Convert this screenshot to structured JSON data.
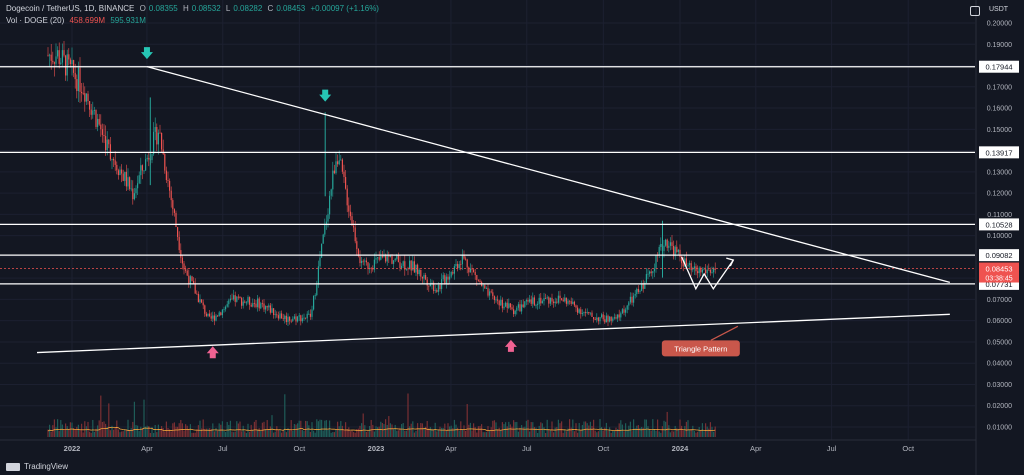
{
  "header": {
    "symbol": "Dogecoin / TetherUS, 1D, BINANCE",
    "o_label": "O",
    "o": "0.08355",
    "h_label": "H",
    "h": "0.08532",
    "l_label": "L",
    "l": "0.08282",
    "c_label": "C",
    "c": "0.08453",
    "change": "+0.00097 (+1.16%)",
    "vol_label": "Vol · DOGE (20)",
    "vol_1": "458.699M",
    "vol_2": "595.931M"
  },
  "currency": "USDT",
  "brand": "TradingView",
  "colors": {
    "background": "#131722",
    "up": "#26a69a",
    "down": "#ef5350",
    "line": "#ffffff",
    "arrow_top": "#26c6b5",
    "arrow_bottom": "#f06292",
    "vol_ma": "#f2a33a",
    "annotation_bg": "#c9574b"
  },
  "chart_data": {
    "type": "candlestick",
    "ylim": [
      0,
      0.21
    ],
    "y_ticks": [
      "0.01000",
      "0.02000",
      "0.03000",
      "0.04000",
      "0.05000",
      "0.06000",
      "0.07000",
      "0.08000",
      "0.09000",
      "0.10000",
      "0.11000",
      "0.12000",
      "0.13000",
      "0.14000",
      "0.15000",
      "0.16000",
      "0.17000",
      "0.18000",
      "0.19000",
      "0.20000"
    ],
    "x_ticks": [
      "2022",
      "Apr",
      "Jul",
      "Oct",
      "2023",
      "Apr",
      "Jul",
      "Oct",
      "2024",
      "Apr",
      "Jul",
      "Oct"
    ],
    "price_path": [
      {
        "x": "2021-12",
        "y": 0.185
      },
      {
        "x": "2022-01",
        "y": 0.17
      },
      {
        "x": "2022-02",
        "y": 0.14
      },
      {
        "x": "2022-03",
        "y": 0.12
      },
      {
        "x": "2022-04",
        "y": 0.15
      },
      {
        "x": "2022-05",
        "y": 0.085
      },
      {
        "x": "2022-06",
        "y": 0.06
      },
      {
        "x": "2022-07",
        "y": 0.07
      },
      {
        "x": "2022-08",
        "y": 0.068
      },
      {
        "x": "2022-09",
        "y": 0.061
      },
      {
        "x": "2022-10",
        "y": 0.062
      },
      {
        "x": "2022-11",
        "y": 0.14
      },
      {
        "x": "2022-12",
        "y": 0.085
      },
      {
        "x": "2023-01",
        "y": 0.09
      },
      {
        "x": "2023-02",
        "y": 0.085
      },
      {
        "x": "2023-03",
        "y": 0.075
      },
      {
        "x": "2023-04",
        "y": 0.09
      },
      {
        "x": "2023-05",
        "y": 0.072
      },
      {
        "x": "2023-06",
        "y": 0.065
      },
      {
        "x": "2023-07",
        "y": 0.07
      },
      {
        "x": "2023-08",
        "y": 0.07
      },
      {
        "x": "2023-09",
        "y": 0.062
      },
      {
        "x": "2023-10",
        "y": 0.06
      },
      {
        "x": "2023-11",
        "y": 0.075
      },
      {
        "x": "2023-12",
        "y": 0.098
      },
      {
        "x": "2024-01",
        "y": 0.083
      },
      {
        "x": "2024-02",
        "y": 0.084
      }
    ],
    "levels": [
      {
        "label": "0.17944",
        "value": 0.17944
      },
      {
        "label": "0.13917",
        "value": 0.13917
      },
      {
        "label": "0.10528",
        "value": 0.10528
      },
      {
        "label": "0.09082",
        "value": 0.09082
      },
      {
        "label": "0.07731",
        "value": 0.07731
      }
    ],
    "current_price": {
      "label": "0.08453",
      "value": 0.08453,
      "countdown": "03:38:45"
    },
    "trendlines": [
      {
        "from": {
          "x": "2022-04-01",
          "y": 0.1795
        },
        "to": {
          "x": "2024-11-20",
          "y": 0.078
        }
      },
      {
        "from": {
          "x": "2021-11-20",
          "y": 0.045
        },
        "to": {
          "x": "2024-11-20",
          "y": 0.063
        }
      }
    ],
    "annotations": [
      {
        "text": "Triangle Pattern"
      }
    ]
  }
}
